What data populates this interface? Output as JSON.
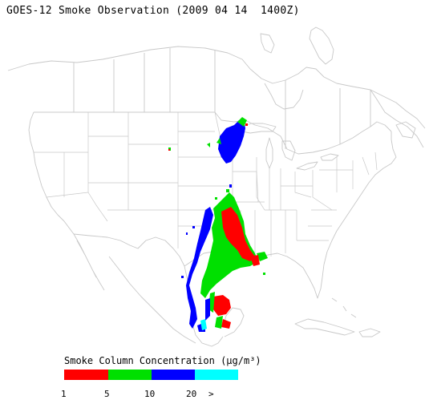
{
  "title": "GOES-12 Smoke Observation (2009 04 14  1400Z)",
  "legend": {
    "title": "Smoke Column Concentration (µg/m³)",
    "bins": [
      {
        "label": "1",
        "color": "#ff0000"
      },
      {
        "label": "5",
        "color": "#00e000"
      },
      {
        "label": "10",
        "color": "#0000ff"
      },
      {
        "label": "20",
        "color": "#00ffff"
      }
    ],
    "overflow_label": ">"
  },
  "colors": {
    "map_lines": "#c8c8c8",
    "low": "#ff0000",
    "mid": "#00e000",
    "high": "#0000ff",
    "very_high": "#00ffff"
  }
}
